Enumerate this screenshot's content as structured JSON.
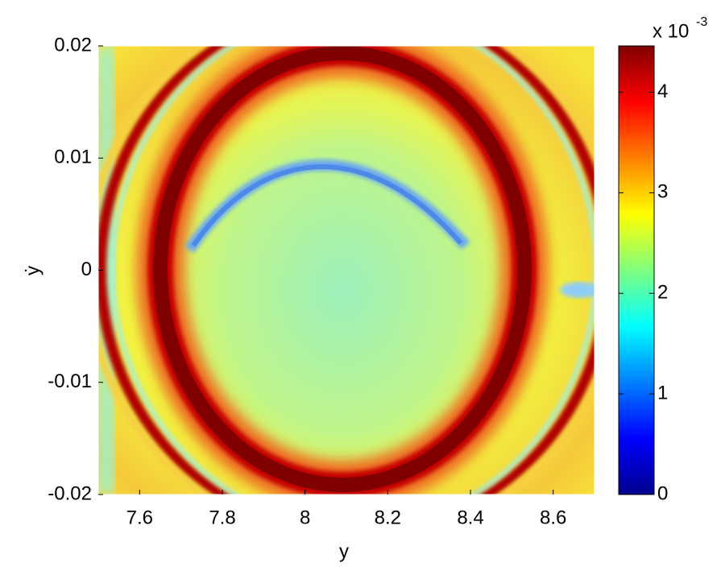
{
  "chart_data": {
    "type": "contourf",
    "xlabel": "y",
    "ylabel": "ẏ",
    "xlim": [
      7.5,
      8.7
    ],
    "xticks": [
      7.6,
      7.8,
      8,
      8.2,
      8.4,
      8.6
    ],
    "ylim": [
      -0.02,
      0.02
    ],
    "yticks": [
      -0.02,
      -0.01,
      0,
      0.01,
      0.02
    ],
    "colormap": "jet",
    "colorbar": {
      "clim": [
        0,
        4.46
      ],
      "ticks": [
        0,
        1,
        2,
        3,
        4
      ],
      "multiplier": "x 10",
      "exponent": "-3"
    }
  }
}
